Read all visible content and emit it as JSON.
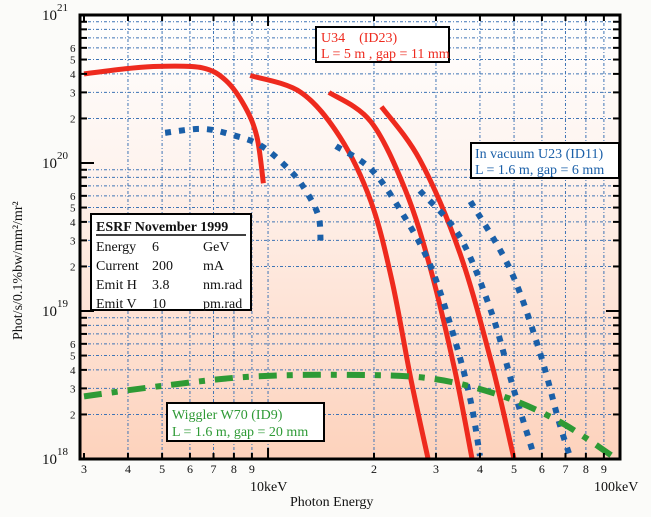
{
  "chart_data": {
    "type": "line",
    "title": "",
    "xlabel": "Photon Energy",
    "ylabel": "Phot/s/0.1%bw/mm²/mr²",
    "xscale": "log",
    "yscale": "log",
    "xlim": [
      3,
      100
    ],
    "ylim": [
      1e+18,
      1e+21
    ],
    "grid": true,
    "x_major_ticks": [
      {
        "value": 10,
        "label": "10keV"
      },
      {
        "value": 100,
        "label": "100keV"
      }
    ],
    "x_minor_ticks": [
      {
        "value": 3,
        "label": "3"
      },
      {
        "value": 4,
        "label": "4"
      },
      {
        "value": 5,
        "label": "5"
      },
      {
        "value": 6,
        "label": "6"
      },
      {
        "value": 7,
        "label": "7"
      },
      {
        "value": 8,
        "label": "8"
      },
      {
        "value": 9,
        "label": "9"
      },
      {
        "value": 20,
        "label": "2"
      },
      {
        "value": 30,
        "label": "3"
      },
      {
        "value": 40,
        "label": "4"
      },
      {
        "value": 50,
        "label": "5"
      },
      {
        "value": 60,
        "label": "6"
      },
      {
        "value": 70,
        "label": "7"
      },
      {
        "value": 80,
        "label": "8"
      },
      {
        "value": 90,
        "label": "9"
      }
    ],
    "y_major_ticks": [
      {
        "value": 1e+18,
        "base": "10",
        "exp": "18"
      },
      {
        "value": 1e+19,
        "base": "10",
        "exp": "19"
      },
      {
        "value": 1e+20,
        "base": "10",
        "exp": "20"
      },
      {
        "value": 1e+21,
        "base": "10",
        "exp": "21"
      }
    ],
    "y_minor_labels": [
      "2",
      "3",
      "4",
      "5",
      "6"
    ],
    "series": [
      {
        "name": "U34 (ID23) harmonic 1",
        "group": "U34",
        "color": "#ee2a1e",
        "style": "solid",
        "x": [
          3.0,
          4.0,
          4.9,
          6.5,
          7.6,
          8.6,
          9.3,
          9.7
        ],
        "y": [
          4e+20,
          4.35e+20,
          4.5e+20,
          4.4e+20,
          3.6e+20,
          2.4e+20,
          1.5e+20,
          7.3e+19
        ]
      },
      {
        "name": "U34 (ID23) harmonic 3",
        "group": "U34",
        "color": "#ee2a1e",
        "style": "solid",
        "x": [
          8.9,
          12.4,
          16.0,
          19.6,
          22.5,
          25.5,
          28.5
        ],
        "y": [
          3.9e+20,
          3e+20,
          1.5e+20,
          5.5e+19,
          1.6e+19,
          3.4e+18,
          1e+18
        ]
      },
      {
        "name": "U34 (ID23) harmonic 5",
        "group": "U34",
        "color": "#ee2a1e",
        "style": "solid",
        "x": [
          14.9,
          19.6,
          24.6,
          29.0,
          34.0,
          38.0
        ],
        "y": [
          3e+20,
          1.9e+20,
          6.5e+19,
          1.9e+19,
          3.9e+18,
          1e+18
        ]
      },
      {
        "name": "U34 (ID23) harmonic 7",
        "group": "U34",
        "color": "#ee2a1e",
        "style": "solid",
        "x": [
          21.0,
          27.0,
          35.0,
          43.0,
          50.0
        ],
        "y": [
          2.4e+20,
          1.05e+20,
          2.5e+19,
          4.6e+18,
          1e+18
        ]
      },
      {
        "name": "In vacuum U23 (ID11) harmonic 1",
        "group": "U23",
        "color": "#1a5fa8",
        "style": "dotted",
        "x": [
          5.1,
          6.5,
          7.9,
          9.6,
          11.6,
          12.8,
          13.9,
          14.1
        ],
        "y": [
          1.6e+20,
          1.7e+20,
          1.55e+20,
          1.3e+20,
          8.8e+19,
          6.5e+19,
          4.4e+19,
          3e+19
        ]
      },
      {
        "name": "In vacuum U23 (ID11) harmonic 3",
        "group": "U23",
        "color": "#1a5fa8",
        "style": "dotted",
        "x": [
          15.6,
          19.6,
          23.9,
          29.0,
          34.0,
          37.6,
          40.0
        ],
        "y": [
          1.3e+20,
          9.1e+19,
          4.7e+19,
          2e+19,
          6.3e+18,
          2.5e+18,
          1.05e+18
        ]
      },
      {
        "name": "In vacuum U23 (ID11) harmonic 5",
        "group": "U23",
        "color": "#1a5fa8",
        "style": "dotted",
        "x": [
          27.0,
          35.0,
          43.0,
          50.0,
          57.0
        ],
        "y": [
          6.5e+19,
          3.2e+19,
          1e+19,
          2.9e+18,
          1.05e+18
        ]
      },
      {
        "name": "In vacuum U23 (ID11) harmonic 7",
        "group": "U23",
        "color": "#1a5fa8",
        "style": "dotted",
        "x": [
          37.6,
          48.8,
          59.0,
          67.0,
          72.0
        ],
        "y": [
          5.5e+19,
          1.9e+19,
          5.4e+18,
          1.8e+18,
          1.05e+18
        ]
      },
      {
        "name": "Wiggler W70 (ID9)",
        "group": "W70",
        "color": "#2e9a35",
        "style": "dashdot",
        "x": [
          3.0,
          4.9,
          8.9,
          17.0,
          29.0,
          45.5,
          67.0,
          95.0
        ],
        "y": [
          2.65e+18,
          3.1e+18,
          3.6e+18,
          3.7e+18,
          3.5e+18,
          2.7e+18,
          1.8e+18,
          1.05e+18
        ]
      }
    ],
    "annotations": [
      {
        "id": "u34",
        "color": "#ee2a1e",
        "lines": [
          "U34    (ID23)",
          "L = 5 m , gap = 11 mm"
        ]
      },
      {
        "id": "u23",
        "color": "#1a5fa8",
        "lines": [
          "In vacuum U23 (ID11)",
          "L = 1.6 m, gap = 6 mm"
        ]
      },
      {
        "id": "w70",
        "color": "#2e9a35",
        "lines": [
          "Wiggler W70 (ID9)",
          "L = 1.6 m, gap = 20 mm"
        ]
      }
    ],
    "info_box": {
      "title": "ESRF November 1999",
      "rows": [
        {
          "param": "Energy",
          "value": "6",
          "unit": "GeV"
        },
        {
          "param": "Current",
          "value": "200",
          "unit": "mA"
        },
        {
          "param": "Emit H",
          "value": "3.8",
          "unit": "nm.rad"
        },
        {
          "param": "Emit V",
          "value": "10",
          "unit": "pm.rad"
        }
      ]
    }
  }
}
